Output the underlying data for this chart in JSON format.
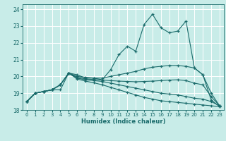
{
  "xlabel": "Humidex (Indice chaleur)",
  "background_color": "#c8ece8",
  "grid_color": "#b0d8d4",
  "line_color": "#1a6b6b",
  "xlim": [
    -0.5,
    23.5
  ],
  "ylim": [
    18.0,
    24.3
  ],
  "yticks": [
    18,
    19,
    20,
    21,
    22,
    23,
    24
  ],
  "xticks": [
    0,
    1,
    2,
    3,
    4,
    5,
    6,
    7,
    8,
    9,
    10,
    11,
    12,
    13,
    14,
    15,
    16,
    17,
    18,
    19,
    20,
    21,
    22,
    23
  ],
  "lines": [
    {
      "y": [
        18.5,
        19.0,
        19.1,
        19.2,
        19.2,
        20.2,
        20.1,
        19.9,
        19.9,
        19.8,
        20.4,
        21.3,
        21.8,
        21.5,
        23.1,
        23.7,
        22.9,
        22.6,
        22.7,
        23.3,
        20.5,
        20.1,
        18.6,
        18.2
      ],
      "has_markers": true
    },
    {
      "y": [
        18.5,
        19.0,
        19.1,
        19.2,
        19.5,
        20.2,
        20.0,
        19.95,
        19.9,
        19.9,
        20.0,
        20.1,
        20.2,
        20.3,
        20.45,
        20.55,
        20.6,
        20.65,
        20.65,
        20.6,
        20.5,
        20.1,
        19.0,
        18.25
      ],
      "has_markers": true
    },
    {
      "y": [
        18.5,
        19.0,
        19.1,
        19.2,
        19.5,
        20.2,
        19.95,
        19.85,
        19.82,
        19.78,
        19.75,
        19.72,
        19.7,
        19.68,
        19.7,
        19.72,
        19.75,
        19.78,
        19.8,
        19.75,
        19.6,
        19.5,
        18.8,
        18.25
      ],
      "has_markers": true
    },
    {
      "y": [
        18.5,
        19.0,
        19.1,
        19.2,
        19.5,
        20.2,
        19.9,
        19.8,
        19.75,
        19.7,
        19.6,
        19.5,
        19.4,
        19.3,
        19.2,
        19.1,
        19.0,
        18.95,
        18.9,
        18.8,
        18.7,
        18.65,
        18.5,
        18.25
      ],
      "has_markers": true
    },
    {
      "y": [
        18.5,
        19.0,
        19.1,
        19.2,
        19.5,
        20.2,
        19.85,
        19.72,
        19.62,
        19.5,
        19.35,
        19.2,
        19.05,
        18.9,
        18.75,
        18.65,
        18.55,
        18.5,
        18.45,
        18.4,
        18.35,
        18.3,
        18.25,
        18.2
      ],
      "has_markers": true
    }
  ]
}
